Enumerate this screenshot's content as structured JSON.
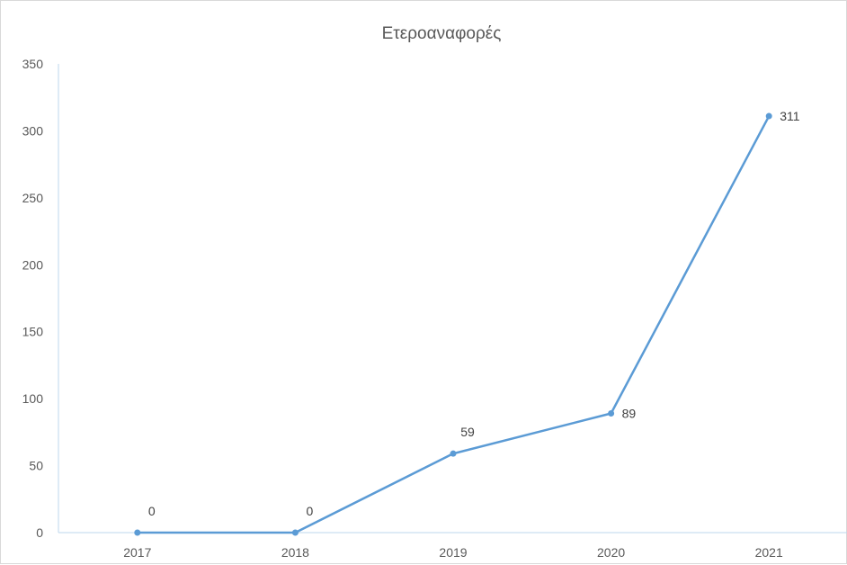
{
  "chart_data": {
    "type": "line",
    "title": "Ετεροαναφορές",
    "xlabel": "",
    "ylabel": "",
    "categories": [
      "2017",
      "2018",
      "2019",
      "2020",
      "2021"
    ],
    "series": [
      {
        "values": [
          0,
          0,
          59,
          89,
          311
        ],
        "data_labels": [
          "0",
          "0",
          "59",
          "89",
          "311"
        ]
      }
    ],
    "ylim": [
      0,
      350
    ],
    "yticks": [
      "0",
      "50",
      "100",
      "150",
      "200",
      "250",
      "300",
      "350"
    ],
    "grid": false,
    "legend": "none",
    "colors": {
      "series": "#5B9BD5",
      "axis": "#BDD7EE",
      "text": "#595959"
    }
  }
}
